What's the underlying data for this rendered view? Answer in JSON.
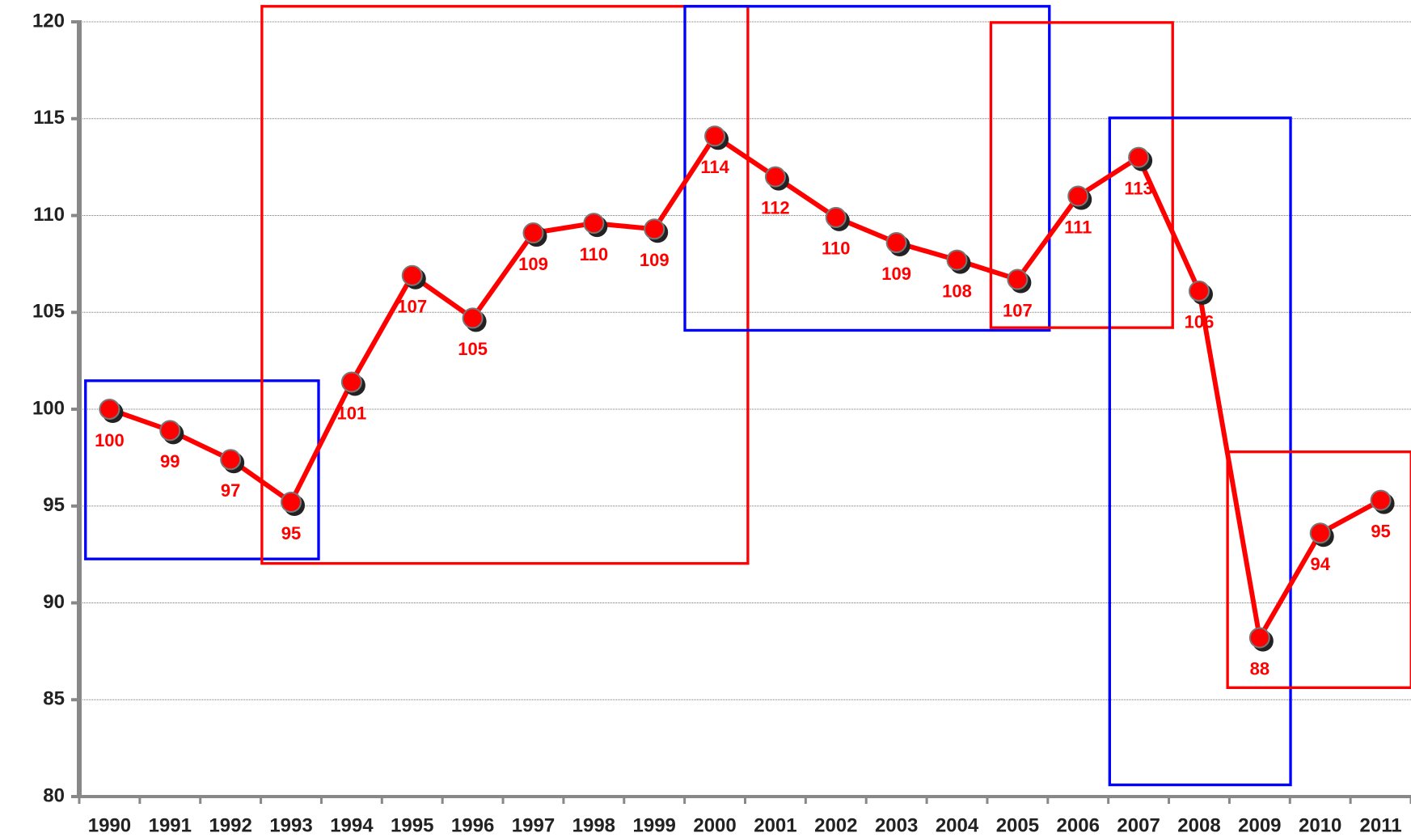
{
  "chart_data": {
    "type": "line",
    "categories": [
      "1990",
      "1991",
      "1992",
      "1993",
      "1994",
      "1995",
      "1996",
      "1997",
      "1998",
      "1999",
      "2000",
      "2001",
      "2002",
      "2003",
      "2004",
      "2005",
      "2006",
      "2007",
      "2008",
      "2009",
      "2010",
      "2011"
    ],
    "series": [
      {
        "color": "#ff0000",
        "values": [
          100,
          98.9,
          97.4,
          95.2,
          101.4,
          106.9,
          104.7,
          109.1,
          109.6,
          109.3,
          114.1,
          112.0,
          109.9,
          108.6,
          107.7,
          106.7,
          111.0,
          113.0,
          106.1,
          88.2,
          93.6,
          95.3
        ],
        "value_labels": [
          "100",
          "99",
          "97",
          "95",
          "101",
          "107",
          "105",
          "109",
          "110",
          "109",
          "114",
          "112",
          "110",
          "109",
          "108",
          "107",
          "111",
          "113",
          "106",
          "88",
          "94",
          "95"
        ]
      }
    ],
    "ylim": [
      80,
      120
    ],
    "yticks": [
      80,
      85,
      90,
      95,
      100,
      105,
      110,
      115,
      120
    ],
    "grid": true
  }
}
